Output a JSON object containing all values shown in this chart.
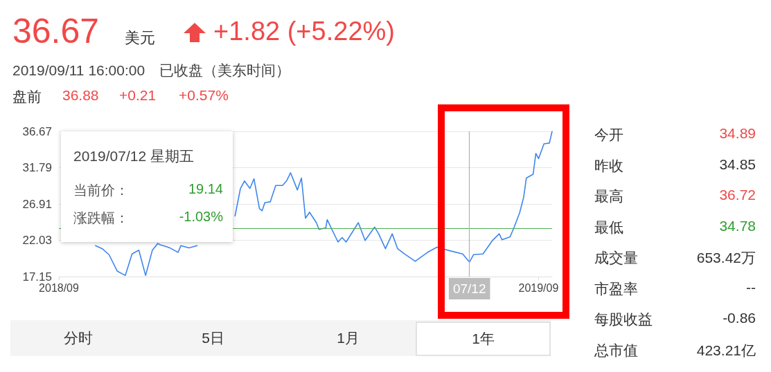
{
  "chart_data": {
    "type": "line",
    "title": "36.67",
    "subtitle": "2019/09/11 16:00:00　已收盘（美东时间）",
    "annotations": [
      "美元",
      "+1.82 (+5.22%)",
      "盘前",
      "36.88",
      "+0.21",
      "+0.57%",
      "今开",
      "34.89",
      "昨收",
      "34.85",
      "最高",
      "36.72",
      "最低",
      "34.78",
      "成交量",
      "653.42万",
      "市盈率",
      "--",
      "每股收益",
      "-0.86",
      "总市值",
      "423.21亿",
      "分时",
      "5日",
      "1月",
      "1年",
      "2019/07/12 星期五",
      "当前价：",
      "19.14",
      "涨跌幅：",
      "-1.03%"
    ],
    "x": [
      "2018-10-09",
      "2018-10-14",
      "2018-10-19",
      "2018-10-25",
      "2018-10-31",
      "2018-11-05",
      "2018-11-10",
      "2018-11-15",
      "2018-11-20",
      "2018-11-24",
      "2018-11-26",
      "2018-11-28",
      "2018-12-03",
      "2018-12-09",
      "2018-12-11",
      "2018-12-17",
      "2018-12-23",
      "2019-01-05",
      "2019-01-20",
      "2019-01-24",
      "2019-01-27",
      "2019-01-31",
      "2019-02-03",
      "2019-02-07",
      "2019-02-09",
      "2019-02-11",
      "2019-02-15",
      "2019-02-19",
      "2019-02-24",
      "2019-02-27",
      "2019-03-02",
      "2019-03-07",
      "2019-03-10",
      "2019-03-13",
      "2019-03-16",
      "2019-03-21",
      "2019-03-23",
      "2019-03-28",
      "2019-03-29",
      "2019-04-06",
      "2019-04-09",
      "2019-04-12",
      "2019-04-21",
      "2019-04-26",
      "2019-05-03",
      "2019-05-06",
      "2019-05-11",
      "2019-05-16",
      "2019-05-20",
      "2019-05-25",
      "2019-06-02",
      "2019-06-11",
      "2019-06-18",
      "2019-06-28",
      "2019-07-07",
      "2019-07-12",
      "2019-07-15",
      "2019-07-22",
      "2019-07-29",
      "2019-08-03",
      "2019-08-05",
      "2019-08-11",
      "2019-08-14",
      "2019-08-18",
      "2019-08-21",
      "2019-08-23",
      "2019-08-28",
      "2019-08-30",
      "2019-09-01",
      "2019-09-05",
      "2019-09-09",
      "2019-09-11"
    ],
    "values": [
      21.3,
      20.9,
      20.1,
      17.9,
      17.3,
      20.2,
      20.7,
      17.3,
      20.7,
      21.6,
      21.4,
      21.3,
      21.0,
      20.4,
      21.3,
      21.0,
      21.3,
      null,
      25.3,
      29.0,
      30.0,
      29.0,
      30.3,
      26.3,
      26.0,
      27.1,
      27.2,
      29.4,
      29.4,
      30.0,
      31.1,
      28.8,
      30.4,
      25.0,
      25.8,
      24.4,
      23.5,
      23.7,
      24.8,
      21.8,
      22.4,
      21.8,
      24.4,
      22.0,
      23.8,
      22.9,
      20.9,
      22.9,
      20.9,
      20.2,
      19.2,
      20.4,
      21.1,
      20.6,
      20.2,
      19.1,
      20.1,
      20.2,
      22.0,
      22.9,
      22.1,
      22.5,
      23.8,
      25.7,
      27.8,
      30.4,
      30.9,
      33.7,
      33.0,
      35.0,
      35.1,
      36.67
    ],
    "color": "#3d86ee",
    "marker": "none",
    "line_style": "solid",
    "grid": "y",
    "xlim": [
      "2018-09-12",
      "2019-09-11"
    ],
    "xticks": [
      {
        "value": "2018-09-12",
        "label": "2018/09"
      },
      {
        "value": "2019-09-01",
        "label": "2019/09"
      }
    ],
    "ylim": [
      17.15,
      36.67
    ],
    "yticks": [
      17.15,
      22.03,
      26.91,
      31.79,
      36.67
    ],
    "ref_lines": [
      {
        "axis": "y",
        "value": 23.6,
        "color": "#4caf50"
      },
      {
        "axis": "x",
        "value": "2019-07-12",
        "label": "07/12",
        "color": "#b0b0b0"
      }
    ]
  }
}
